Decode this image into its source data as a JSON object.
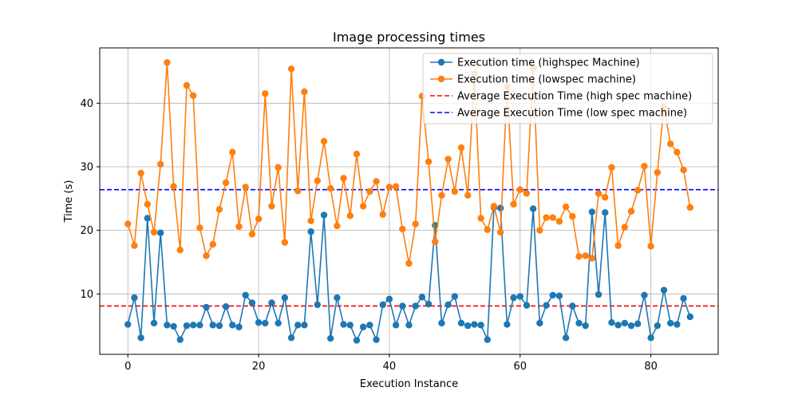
{
  "chart_data": {
    "type": "line",
    "title": "Image processing times",
    "xlabel": "Execution Instance",
    "ylabel": "Time (s)",
    "xlim": [
      -4.3,
      90.3
    ],
    "ylim": [
      0.5,
      48.7
    ],
    "xticks": [
      0,
      20,
      40,
      60,
      80
    ],
    "yticks": [
      10,
      20,
      30,
      40
    ],
    "grid": true,
    "legend_position": "top-right",
    "series": [
      {
        "name": "Execution time (highspec Machine)",
        "color": "#1f77b4",
        "style": "line-markers",
        "values": [
          5.2,
          9.4,
          3.1,
          21.9,
          5.4,
          19.6,
          5.1,
          4.9,
          2.8,
          5.0,
          5.1,
          5.1,
          7.9,
          5.1,
          5.0,
          8.0,
          5.1,
          4.8,
          9.8,
          8.6,
          5.5,
          5.4,
          8.6,
          5.4,
          9.4,
          3.1,
          5.1,
          5.1,
          19.8,
          8.3,
          22.4,
          3.0,
          9.4,
          5.2,
          5.1,
          2.7,
          4.8,
          5.1,
          2.8,
          8.3,
          9.2,
          5.1,
          8.1,
          5.1,
          8.1,
          9.5,
          8.4,
          20.8,
          5.4,
          8.3,
          9.6,
          5.4,
          5.0,
          5.2,
          5.1,
          2.8,
          23.6,
          23.5,
          5.2,
          9.4,
          9.6,
          8.2,
          23.4,
          5.4,
          8.2,
          9.8,
          9.7,
          3.1,
          8.1,
          5.4,
          5.0,
          22.9,
          9.9,
          22.8,
          5.5,
          5.1,
          5.4,
          5.0,
          5.3,
          9.8,
          3.1,
          5.0,
          10.6,
          5.4,
          5.2,
          9.3,
          6.4
        ]
      },
      {
        "name": "Execution time (lowspec machine)",
        "color": "#ff7f0e",
        "style": "line-markers",
        "values": [
          21.0,
          17.6,
          29.0,
          24.1,
          19.7,
          30.4,
          46.4,
          26.9,
          16.9,
          42.8,
          41.2,
          20.4,
          16.0,
          17.8,
          23.3,
          27.5,
          32.3,
          20.6,
          26.8,
          19.4,
          21.8,
          41.5,
          23.8,
          29.9,
          18.1,
          45.4,
          26.2,
          41.8,
          21.5,
          27.8,
          34.0,
          26.6,
          20.7,
          28.2,
          22.3,
          32.0,
          23.8,
          26.1,
          27.7,
          22.5,
          26.8,
          26.9,
          20.2,
          14.8,
          21.0,
          41.1,
          30.8,
          18.2,
          25.5,
          31.2,
          26.1,
          33.0,
          25.5,
          44.6,
          21.9,
          20.1,
          23.8,
          19.7,
          42.6,
          24.1,
          26.4,
          25.8,
          45.5,
          20.0,
          22.0,
          22.0,
          21.4,
          23.7,
          22.2,
          15.9,
          16.0,
          15.6,
          25.8,
          25.2,
          29.9,
          17.6,
          20.5,
          23.0,
          26.3,
          30.1,
          17.5,
          29.1,
          39.4,
          33.6,
          32.3,
          29.5,
          23.6
        ]
      },
      {
        "name": "Average Execution Time (high spec machine)",
        "color": "#ff0000",
        "style": "dashed",
        "value": 8.1
      },
      {
        "name": "Average Execution Time (low spec machine)",
        "color": "#0000ff",
        "style": "dashed",
        "value": 26.4
      }
    ]
  }
}
